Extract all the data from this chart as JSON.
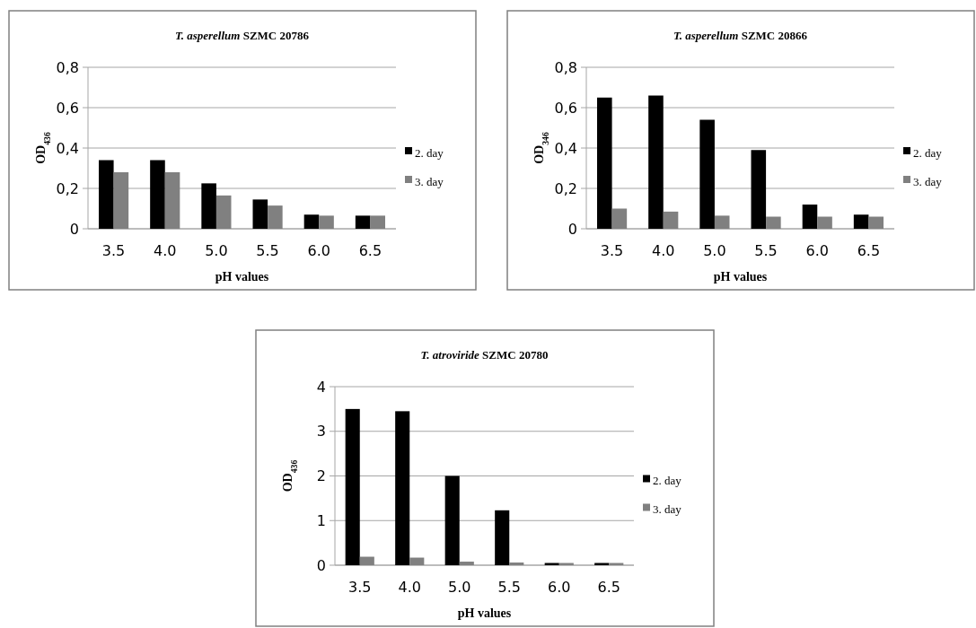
{
  "chart_data": [
    {
      "type": "bar",
      "title": "T. asperellum SZMC 20786",
      "xlabel": "pH values",
      "ylabel": "OD$_{436}$",
      "categories": [
        "3.5",
        "4.0",
        "5.0",
        "5.5",
        "6.0",
        "6.5"
      ],
      "series": [
        {
          "name": "2. day",
          "color": "#000000",
          "values": [
            0.34,
            0.34,
            0.225,
            0.145,
            0.07,
            0.065
          ]
        },
        {
          "name": "3. day",
          "color": "#808080",
          "values": [
            0.28,
            0.28,
            0.165,
            0.115,
            0.065,
            0.065
          ]
        }
      ],
      "ylim": [
        0,
        0.8
      ],
      "yticks": [
        {
          "value": 0,
          "label": "0"
        },
        {
          "value": 0.2,
          "label": "0,2"
        },
        {
          "value": 0.4,
          "label": "0,4"
        },
        {
          "value": 0.6,
          "label": "0,6"
        },
        {
          "value": 0.8,
          "label": "0,8"
        }
      ],
      "grid": "y",
      "legend": "right"
    },
    {
      "type": "bar",
      "title": "T. asperellum SZMC 20866",
      "xlabel": "pH values",
      "ylabel": "OD$_{346}$",
      "categories": [
        "3.5",
        "4.0",
        "5.0",
        "5.5",
        "6.0",
        "6.5"
      ],
      "series": [
        {
          "name": "2. day",
          "color": "#000000",
          "values": [
            0.65,
            0.66,
            0.54,
            0.39,
            0.12,
            0.07
          ]
        },
        {
          "name": "3. day",
          "color": "#808080",
          "values": [
            0.1,
            0.085,
            0.065,
            0.06,
            0.06,
            0.06
          ]
        }
      ],
      "ylim": [
        0,
        0.8
      ],
      "yticks": [
        {
          "value": 0,
          "label": "0"
        },
        {
          "value": 0.2,
          "label": "0,2"
        },
        {
          "value": 0.4,
          "label": "0,4"
        },
        {
          "value": 0.6,
          "label": "0,6"
        },
        {
          "value": 0.8,
          "label": "0,8"
        }
      ],
      "grid": "y",
      "legend": "right"
    },
    {
      "type": "bar",
      "title": "T. atroviride SZMC 20780",
      "xlabel": "pH values",
      "ylabel": "OD$_{436}$",
      "categories": [
        "3.5",
        "4.0",
        "5.0",
        "5.5",
        "6.0",
        "6.5"
      ],
      "series": [
        {
          "name": "2. day",
          "color": "#000000",
          "values": [
            3.5,
            3.45,
            2.0,
            1.23,
            0.05,
            0.05
          ]
        },
        {
          "name": "3. day",
          "color": "#808080",
          "values": [
            0.19,
            0.17,
            0.08,
            0.06,
            0.05,
            0.05
          ]
        }
      ],
      "ylim": [
        0,
        4
      ],
      "yticks": [
        0,
        1,
        2,
        3,
        4
      ],
      "grid": "y",
      "legend": "right"
    }
  ]
}
